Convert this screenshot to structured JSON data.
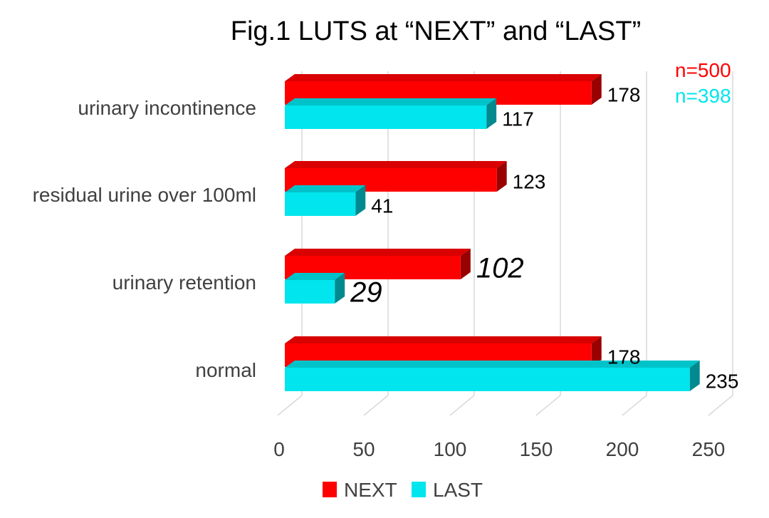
{
  "chart_data": {
    "type": "bar",
    "orientation": "horizontal",
    "style": "3d",
    "title": "Fig.1 LUTS at “NEXT” and “LAST”",
    "categories": [
      "urinary incontinence",
      "residual urine over 100ml",
      "urinary retention",
      "normal"
    ],
    "series": [
      {
        "name": "NEXT",
        "color": "#ff0000",
        "values": [
          178,
          123,
          102,
          178
        ],
        "value_labels": [
          "178",
          "123",
          "102",
          "178"
        ]
      },
      {
        "name": "LAST",
        "color": "#00e5ee",
        "values": [
          117,
          41,
          29,
          235
        ],
        "value_labels": [
          "117",
          "41",
          "29",
          "235"
        ]
      }
    ],
    "emphasized_category": "urinary retention",
    "xlim": [
      0,
      250
    ],
    "xticks": [
      0,
      50,
      100,
      150,
      200,
      250
    ],
    "grid": true,
    "legend_position": "bottom",
    "annotations": [
      {
        "text": "n=500",
        "color": "#ff0000"
      },
      {
        "text": "n=398",
        "color": "#00e5ee"
      }
    ]
  }
}
